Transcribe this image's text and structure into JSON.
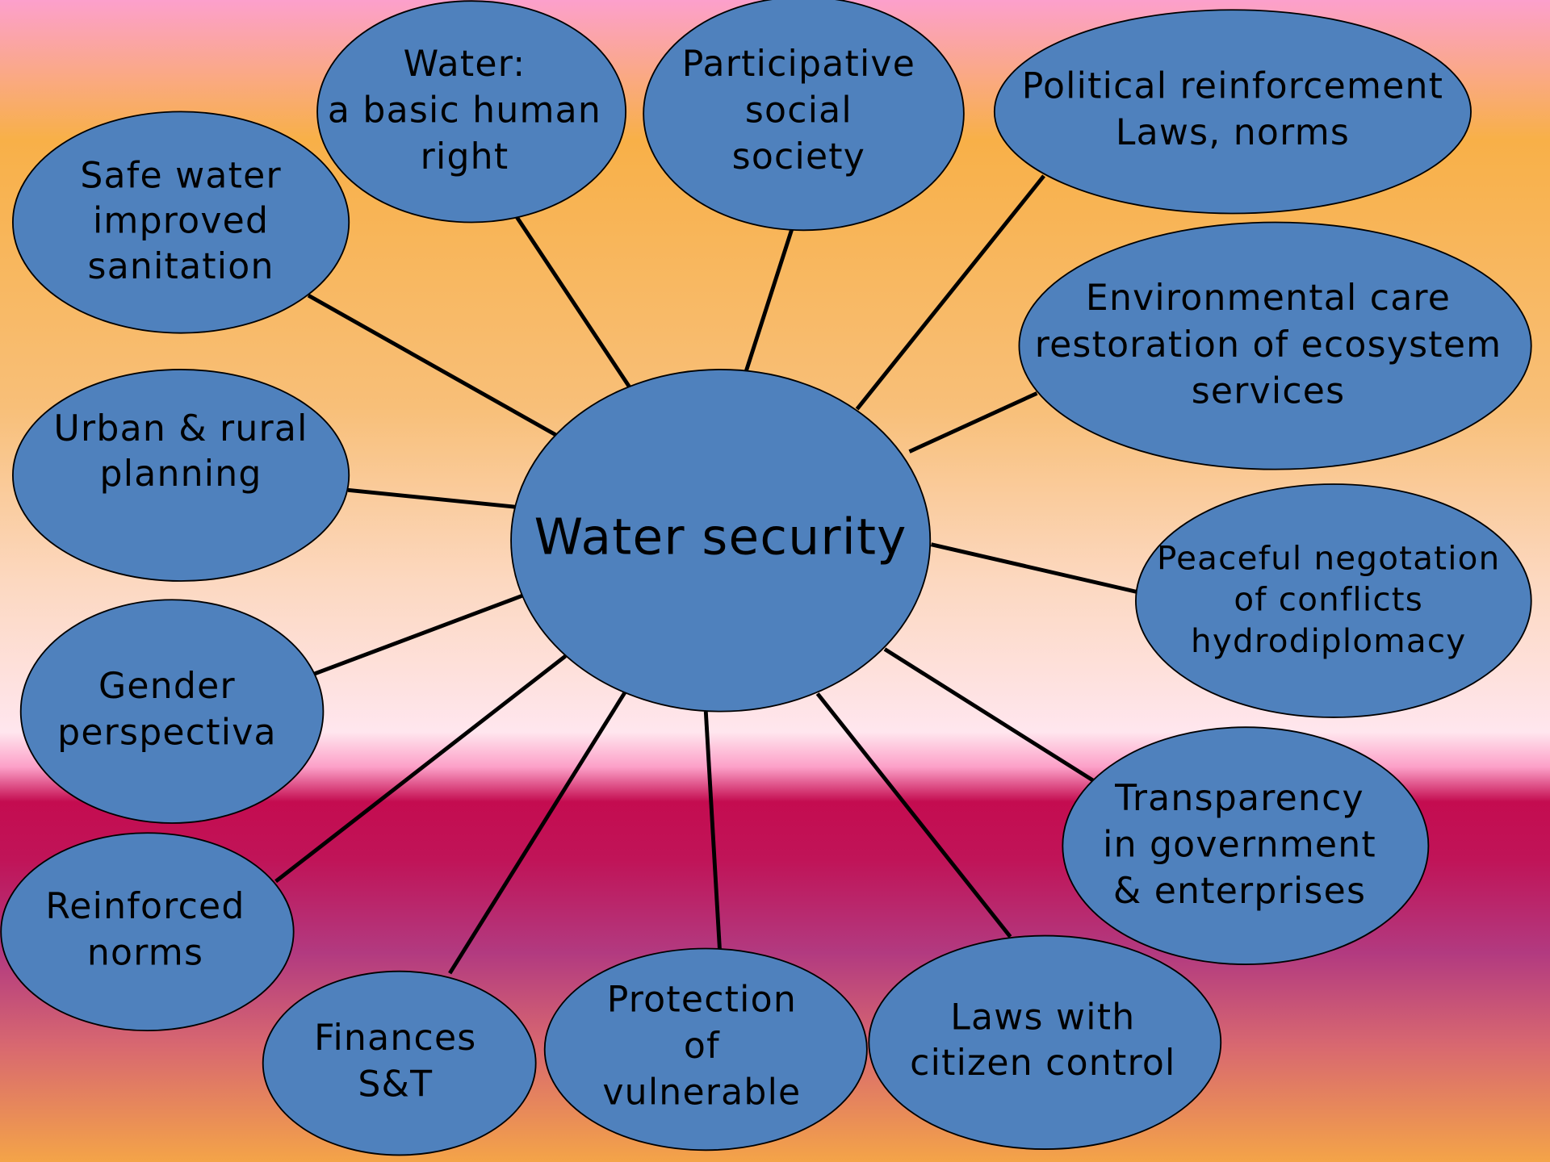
{
  "center": "Water security",
  "nodes": [
    {
      "lines": [
        "Safe water",
        "improved",
        "sanitation"
      ]
    },
    {
      "lines": [
        "Water:",
        "a basic human",
        "right"
      ]
    },
    {
      "lines": [
        "Participative",
        "social",
        "society"
      ]
    },
    {
      "lines": [
        "Political reinforcement",
        "Laws, norms"
      ]
    },
    {
      "lines": [
        "Environmental care",
        "restoration of ecosystem",
        "services"
      ]
    },
    {
      "lines": [
        "Peaceful negotation",
        "of conflicts",
        "hydrodiplomacy"
      ]
    },
    {
      "lines": [
        "Transparency",
        "in government",
        "& enterprises"
      ]
    },
    {
      "lines": [
        "Laws with",
        "citizen control"
      ]
    },
    {
      "lines": [
        "Protection",
        "of",
        "vulnerable"
      ]
    },
    {
      "lines": [
        "Finances",
        "S&T"
      ]
    },
    {
      "lines": [
        "Reinforced",
        "norms"
      ]
    },
    {
      "lines": [
        "Gender",
        "perspectiva"
      ]
    },
    {
      "lines": [
        "Urban & rural",
        "planning"
      ]
    }
  ]
}
